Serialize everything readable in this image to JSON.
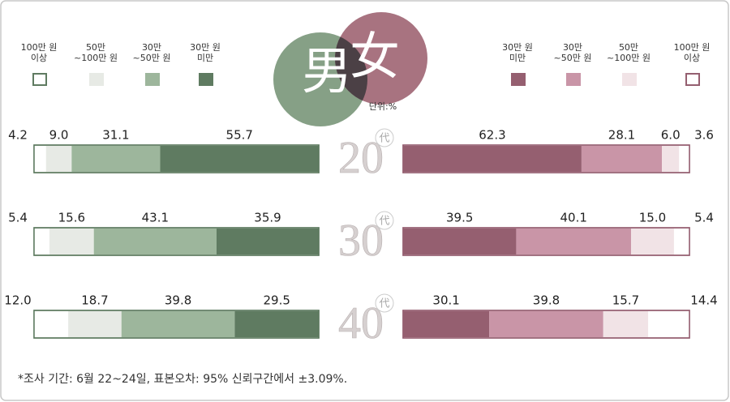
{
  "chart_data": {
    "type": "bar",
    "male_label": "男",
    "female_label": "女",
    "unit_label": "단위:%",
    "categories": [
      "20",
      "30",
      "40"
    ],
    "category_suffix": "代",
    "footnote": "*조사 기간: 6월 22~24일, 표본오차: 95% 신뢰구간에서 ±3.09%.",
    "groups": [
      {
        "side": "left",
        "series": [
          {
            "name": "100만 원\n이상",
            "color": "#ffffff",
            "values": [
              4.2,
              5.4,
              12.0
            ],
            "value_labels": [
              "4.2",
              "5.4",
              "12.0"
            ]
          },
          {
            "name": "50만\n~100만 원",
            "color": "#e7eae5",
            "values": [
              9.0,
              15.6,
              18.7
            ],
            "value_labels": [
              "9.0",
              "15.6",
              "18.7"
            ]
          },
          {
            "name": "30만\n~50만 원",
            "color": "#9db69c",
            "values": [
              31.1,
              43.1,
              39.8
            ],
            "value_labels": [
              "31.1",
              "43.1",
              "39.8"
            ]
          },
          {
            "name": "30만 원\n미만",
            "color": "#5f7b61",
            "values": [
              55.7,
              35.9,
              29.5
            ],
            "value_labels": [
              "55.7",
              "35.9",
              "29.5"
            ]
          }
        ]
      },
      {
        "side": "right",
        "series": [
          {
            "name": "30만 원\n미만",
            "color": "#955f70",
            "values": [
              62.3,
              39.5,
              30.1
            ],
            "value_labels": [
              "62.3",
              "39.5",
              "30.1"
            ]
          },
          {
            "name": "30만\n~50만 원",
            "color": "#c995a7",
            "values": [
              28.1,
              40.1,
              39.8
            ],
            "value_labels": [
              "28.1",
              "40.1",
              "39.8"
            ]
          },
          {
            "name": "50만\n~100만 원",
            "color": "#f1e3e6",
            "values": [
              6.0,
              15.0,
              15.7
            ],
            "value_labels": [
              "6.0",
              "15.0",
              "15.7"
            ]
          },
          {
            "name": "100만 원\n이상",
            "color": "#ffffff",
            "values": [
              3.6,
              5.4,
              14.4
            ],
            "value_labels": [
              "3.6",
              "5.4",
              "14.4"
            ]
          }
        ]
      }
    ]
  }
}
